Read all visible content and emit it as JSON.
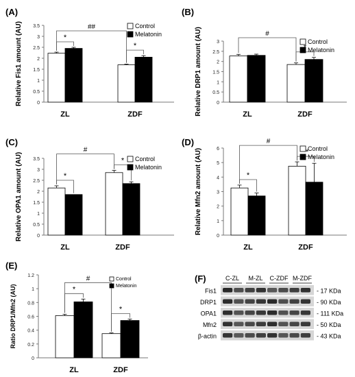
{
  "figure": {
    "panel_f": {
      "label": "(F)",
      "lanes": [
        "C-ZL",
        "M-ZL",
        "C-ZDF",
        "M-ZDF"
      ],
      "rows": [
        {
          "protein": "Fis1",
          "size": "- 17 KDa"
        },
        {
          "protein": "DRP1",
          "size": "- 90 KDa"
        },
        {
          "protein": "OPA1",
          "size": "- 111 KDa"
        },
        {
          "protein": "Mfn2",
          "size": "- 50 KDa"
        },
        {
          "protein": "β-actin",
          "size": "- 43 KDa"
        }
      ]
    }
  },
  "chart_data": [
    {
      "label": "(A)",
      "type": "bar",
      "ylabel": "Relative Fis1 amount (AU)",
      "categories": [
        "ZL",
        "ZDF"
      ],
      "yticks": [
        "0",
        "0.5",
        "1",
        "1.5",
        "2",
        "2.5",
        "3",
        "3.5"
      ],
      "ylim": [
        0,
        3.5
      ],
      "series": [
        {
          "name": "Control",
          "values": [
            2.23,
            1.7
          ],
          "errors": [
            0.05,
            0.03
          ]
        },
        {
          "name": "Melatonin",
          "values": [
            2.45,
            2.05
          ],
          "errors": [
            0.05,
            0.07
          ]
        }
      ],
      "sig_within": [
        "*",
        "*"
      ],
      "sig_between": {
        "text": "##"
      }
    },
    {
      "label": "(B)",
      "type": "bar",
      "ylabel": "Relative DRP1 amount (AU)",
      "categories": [
        "ZL",
        "ZDF"
      ],
      "yticks": [
        "0",
        "0.5",
        "1",
        "1.5",
        "2",
        "2.5",
        "3"
      ],
      "ylim": [
        0,
        3
      ],
      "series": [
        {
          "name": "Control",
          "values": [
            2.27,
            1.85
          ],
          "errors": [
            0.08,
            0.08
          ]
        },
        {
          "name": "Melatonin",
          "values": [
            2.3,
            2.1
          ],
          "errors": [
            0.06,
            0.1
          ]
        }
      ],
      "sig_within": [
        "",
        "*"
      ],
      "sig_between": {
        "text": "#"
      }
    },
    {
      "label": "(C)",
      "type": "bar",
      "ylabel": "Relative OPA1 amount (AU)",
      "categories": [
        "ZL",
        "ZDF"
      ],
      "yticks": [
        "0",
        "0.5",
        "1",
        "1.5",
        "2",
        "2.5",
        "3",
        "3.5"
      ],
      "ylim": [
        0,
        3.5
      ],
      "series": [
        {
          "name": "Control",
          "values": [
            2.15,
            2.85
          ],
          "errors": [
            0.1,
            0.1
          ]
        },
        {
          "name": "Melatonin",
          "values": [
            1.85,
            2.35
          ],
          "errors": [
            0,
            0.08
          ]
        }
      ],
      "sig_within": [
        "*",
        "*"
      ],
      "sig_between": {
        "text": "#"
      }
    },
    {
      "label": "(D)",
      "type": "bar",
      "ylabel": "Relative Mfn2 amount (AU)",
      "categories": [
        "ZL",
        "ZDF"
      ],
      "yticks": [
        "0",
        "1",
        "2",
        "3",
        "4",
        "5",
        "6"
      ],
      "ylim": [
        0,
        6
      ],
      "series": [
        {
          "name": "Control",
          "values": [
            3.25,
            4.75
          ],
          "errors": [
            0.2,
            0.3
          ]
        },
        {
          "name": "Melatonin",
          "values": [
            2.7,
            3.65
          ],
          "errors": [
            0.2,
            1.3
          ]
        }
      ],
      "sig_within": [
        "*",
        "**"
      ],
      "sig_between": {
        "text": "#"
      }
    },
    {
      "label": "(E)",
      "type": "bar",
      "ylabel": "Ratio DRP1/Mfn2  (AU)",
      "categories": [
        "ZL",
        "ZDF"
      ],
      "yticks": [
        "0",
        "0.2",
        "0.4",
        "0.6",
        "0.8",
        "1",
        "1.2"
      ],
      "ylim": [
        0,
        1.2
      ],
      "series": [
        {
          "name": "Control",
          "values": [
            0.61,
            0.35
          ],
          "errors": [
            0.02,
            0.01
          ]
        },
        {
          "name": "Melatonin",
          "values": [
            0.81,
            0.54
          ],
          "errors": [
            0.04,
            0.02
          ]
        }
      ],
      "sig_within": [
        "*",
        "*"
      ],
      "sig_between": {
        "text": "#"
      }
    }
  ]
}
